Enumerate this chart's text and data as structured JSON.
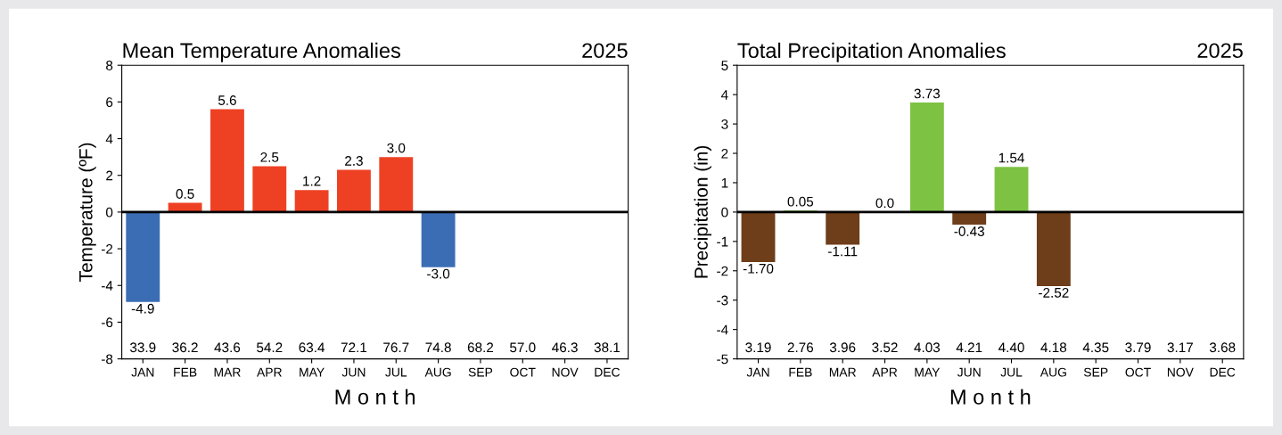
{
  "chart_data": [
    {
      "type": "bar",
      "title": "Mean Temperature Anomalies",
      "subtitle": "2025",
      "xlabel": "M o n t h",
      "ylabel": "Temperature (ºF)",
      "categories": [
        "JAN",
        "FEB",
        "MAR",
        "APR",
        "MAY",
        "JUN",
        "JUL",
        "AUG",
        "SEP",
        "OCT",
        "NOV",
        "DEC"
      ],
      "values": [
        -4.9,
        0.5,
        5.6,
        2.5,
        1.2,
        2.3,
        3.0,
        -3.0,
        null,
        null,
        null,
        null
      ],
      "value_labels": [
        "-4.9",
        "0.5",
        "5.6",
        "2.5",
        "1.2",
        "2.3",
        "3.0",
        "-3.0",
        null,
        null,
        null,
        null
      ],
      "colors": [
        "#3b6db5",
        "#ee4124",
        "#ee4124",
        "#ee4124",
        "#ee4124",
        "#ee4124",
        "#ee4124",
        "#3b6db5",
        "#ee4124",
        "#ee4124",
        "#ee4124",
        "#ee4124"
      ],
      "ylim": [
        -8,
        8
      ],
      "yticks": [
        -8,
        -6,
        -4,
        -2,
        0,
        2,
        4,
        6,
        8
      ],
      "ref_lines": [
        {
          "axis": "y",
          "value": 0,
          "color": "#000000"
        }
      ],
      "annotations": [
        "33.9",
        "36.2",
        "43.6",
        "54.2",
        "63.4",
        "72.1",
        "76.7",
        "74.8",
        "68.2",
        "57.0",
        "46.3",
        "38.1"
      ]
    },
    {
      "type": "bar",
      "title": "Total Precipitation Anomalies",
      "subtitle": "2025",
      "xlabel": "M o n t h",
      "ylabel": "Precipitation (in)",
      "categories": [
        "JAN",
        "FEB",
        "MAR",
        "APR",
        "MAY",
        "JUN",
        "JUL",
        "AUG",
        "SEP",
        "OCT",
        "NOV",
        "DEC"
      ],
      "values": [
        -1.7,
        0.05,
        -1.11,
        0.0,
        3.73,
        -0.43,
        1.54,
        -2.52,
        null,
        null,
        null,
        null
      ],
      "value_labels": [
        "-1.70",
        "0.05",
        "-1.11",
        "0.0",
        "3.73",
        "-0.43",
        "1.54",
        "-2.52",
        null,
        null,
        null,
        null
      ],
      "colors": [
        "#6e3d19",
        "#7dc242",
        "#6e3d19",
        "#7dc242",
        "#7dc242",
        "#6e3d19",
        "#7dc242",
        "#6e3d19",
        "#7dc242",
        "#7dc242",
        "#7dc242",
        "#7dc242"
      ],
      "ylim": [
        -5,
        5
      ],
      "yticks": [
        -5,
        -4,
        -3,
        -2,
        -1,
        0,
        1,
        2,
        3,
        4,
        5
      ],
      "ref_lines": [
        {
          "axis": "y",
          "value": 0,
          "color": "#000000"
        }
      ],
      "annotations": [
        "3.19",
        "2.76",
        "3.96",
        "3.52",
        "4.03",
        "4.21",
        "4.40",
        "4.18",
        "4.35",
        "3.79",
        "3.17",
        "3.68"
      ]
    }
  ]
}
